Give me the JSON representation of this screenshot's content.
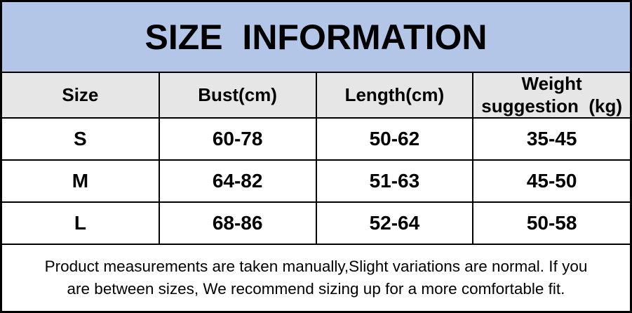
{
  "banner": {
    "title": "SIZE  INFORMATION"
  },
  "table": {
    "headers": [
      "Size",
      "Bust(cm)",
      "Length(cm)",
      "Weight\nsuggestion  (kg)"
    ],
    "rows": [
      [
        "S",
        "60-78",
        "50-62",
        "35-45"
      ],
      [
        "M",
        "64-82",
        "51-63",
        "45-50"
      ],
      [
        "L",
        "68-86",
        "52-64",
        "50-58"
      ]
    ]
  },
  "footer": {
    "note": "Product measurements are taken manually,Slight variations are normal. If you\nare between sizes, We recommend sizing up for a more comfortable fit."
  },
  "colors": {
    "banner_bg": "#b4c6e7",
    "header_bg": "#e7e6e6",
    "border": "#000000",
    "text": "#000000"
  }
}
